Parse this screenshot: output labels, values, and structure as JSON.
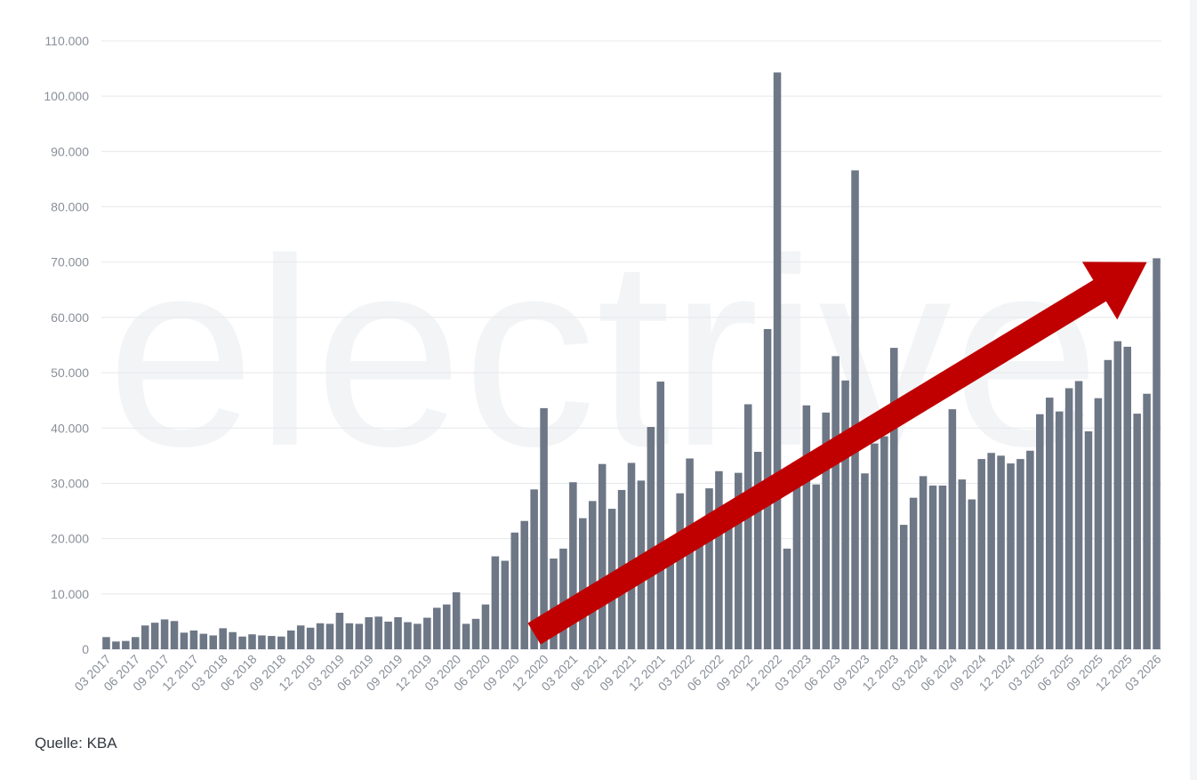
{
  "watermark": "electrive",
  "source_note": "Quelle: KBA",
  "colors": {
    "bar": "#6e7786",
    "arrow": "#c00000",
    "grid": "#e6e8eb",
    "tick": "#8a8f99"
  },
  "chart_data": {
    "type": "bar",
    "ylim": [
      0,
      110000
    ],
    "yticks": [
      0,
      10000,
      20000,
      30000,
      40000,
      50000,
      60000,
      70000,
      80000,
      90000,
      100000,
      110000
    ],
    "ytick_labels": [
      "0",
      "10.000",
      "20.000",
      "30.000",
      "40.000",
      "50.000",
      "60.000",
      "70.000",
      "80.000",
      "90.000",
      "100.000",
      "110.000"
    ],
    "xtick_labels": [
      "03 2017",
      "06 2017",
      "09 2017",
      "12 2017",
      "03 2018",
      "06 2018",
      "09 2018",
      "12 2018",
      "03 2019",
      "06 2019",
      "09 2019",
      "12 2019",
      "03 2020",
      "06 2020",
      "09 2020",
      "12 2020",
      "03 2021",
      "06 2021",
      "09 2021",
      "12 2021",
      "03 2022",
      "06 2022",
      "09 2022",
      "12 2022",
      "03 2023",
      "06 2023",
      "09 2023",
      "12 2023",
      "03 2024",
      "06 2024",
      "09 2024",
      "12 2024",
      "03 2025",
      "06 2025",
      "09 2025",
      "12 2025",
      "03 2026"
    ],
    "grid": true,
    "values": [
      2200,
      1400,
      1500,
      2200,
      4300,
      4800,
      5400,
      5100,
      3000,
      3400,
      2800,
      2500,
      3800,
      3100,
      2300,
      2700,
      2500,
      2400,
      2300,
      3400,
      4300,
      3900,
      4700,
      4600,
      6600,
      4700,
      4600,
      5800,
      5900,
      5000,
      5800,
      4900,
      4600,
      5700,
      7500,
      8100,
      10300,
      4600,
      5500,
      8100,
      16800,
      16000,
      21100,
      23200,
      28900,
      43600,
      16400,
      18200,
      30200,
      23700,
      26800,
      33500,
      25400,
      28800,
      33700,
      30500,
      40200,
      48400,
      15700,
      28200,
      34500,
      20300,
      29100,
      32200,
      22900,
      31900,
      44300,
      35700,
      57900,
      104300,
      18200,
      32400,
      44100,
      29800,
      42800,
      53000,
      48600,
      86600,
      31800,
      37200,
      38500,
      54500,
      22500,
      27400,
      31300,
      29600,
      29600,
      43400,
      30700,
      27100,
      34400,
      35500,
      35000,
      33600,
      34400,
      35900,
      42500,
      45500,
      43000,
      47200,
      48500,
      39400,
      45400,
      52300,
      55700,
      54700,
      42600,
      46200,
      70700
    ]
  },
  "annotation": {
    "type": "trend-arrow",
    "start_index": 44,
    "start_value": 2800,
    "end_index": 107,
    "end_value": 70000
  }
}
